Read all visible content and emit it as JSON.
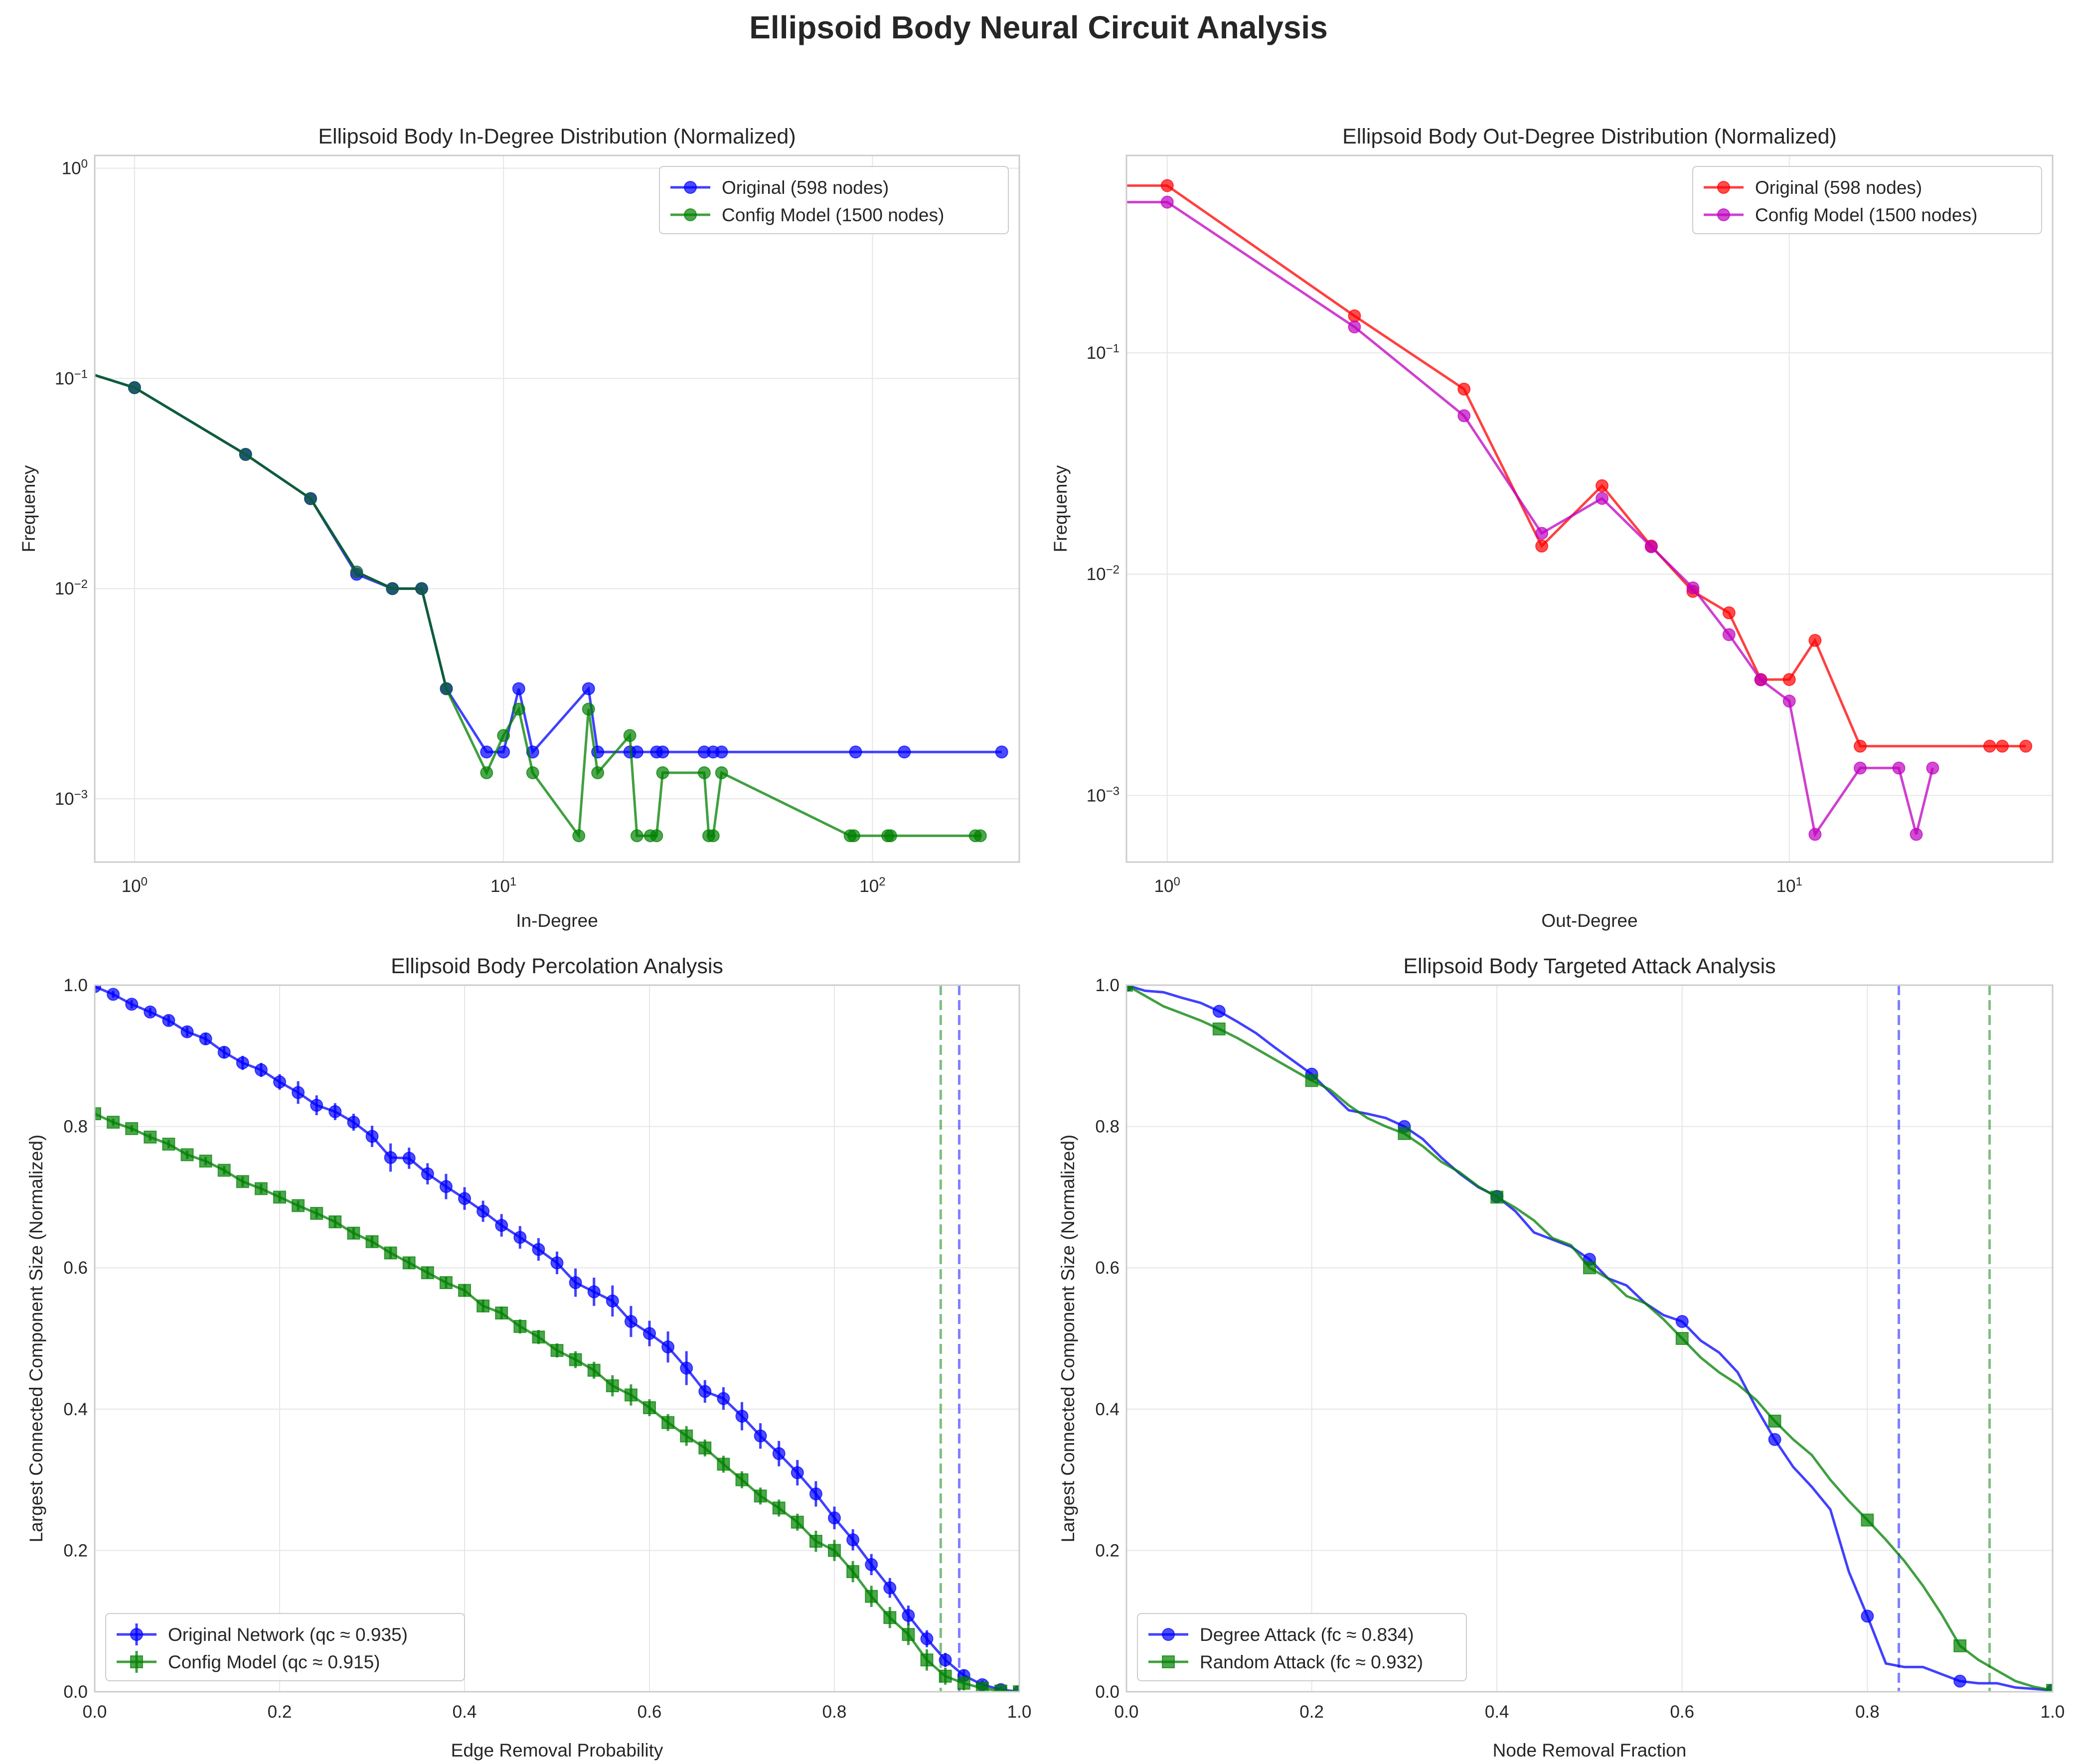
{
  "figure": {
    "title": "Ellipsoid Body Neural Circuit Analysis"
  },
  "colors": {
    "blue": "#0000ff",
    "green": "#008000",
    "red": "#ff0000",
    "magenta": "#bf00bf",
    "dark_green": "#0e5c3a",
    "grid": "#e6e6e6",
    "spine": "#cccccc"
  },
  "chart_data": [
    {
      "id": "in_degree",
      "type": "line",
      "title": "Ellipsoid Body In-Degree Distribution (Normalized)",
      "xlabel": "In-Degree",
      "ylabel": "Frequency",
      "xscale": "log",
      "yscale": "log",
      "xlim": [
        0.78,
        250
      ],
      "ylim": [
        0.0005,
        1.15
      ],
      "xticks": [
        1,
        10,
        100
      ],
      "xtick_labels": [
        [
          "10",
          "0"
        ],
        [
          "10",
          "1"
        ],
        [
          "10",
          "2"
        ]
      ],
      "yticks": [
        0.001,
        0.01,
        0.1,
        1
      ],
      "ytick_labels": [
        [
          "10",
          "−3"
        ],
        [
          "10",
          "−2"
        ],
        [
          "10",
          "−1"
        ],
        [
          "10",
          "0"
        ]
      ],
      "grid": true,
      "legend_position": "top-right",
      "series": [
        {
          "name": "Original (598 nodes)",
          "color": "#0000ff",
          "marker": "circle",
          "x": [
            0,
            1,
            2,
            3,
            4,
            5,
            6,
            7,
            9,
            10,
            11,
            12,
            17,
            18,
            22,
            23,
            26,
            27,
            35,
            37,
            39,
            90,
            122,
            224
          ],
          "y": [
            0.115,
            0.0904,
            0.0435,
            0.0268,
            0.0117,
            0.01,
            0.01,
            0.00334,
            0.00167,
            0.00167,
            0.00334,
            0.00167,
            0.00334,
            0.00167,
            0.00167,
            0.00167,
            0.00167,
            0.00167,
            0.00167,
            0.00167,
            0.00167,
            0.00167,
            0.00167,
            0.00167
          ]
        },
        {
          "name": "Config Model (1500 nodes)",
          "color": "#008000",
          "marker": "circle",
          "x": [
            0,
            1,
            2,
            3,
            4,
            5,
            6,
            7,
            9,
            10,
            11,
            12,
            16,
            17,
            18,
            22,
            23,
            25,
            26,
            27,
            35,
            36,
            37,
            39,
            87,
            89,
            110,
            112,
            190,
            196
          ],
          "y": [
            0.115,
            0.0904,
            0.0435,
            0.0268,
            0.012,
            0.01,
            0.01,
            0.00334,
            0.00133,
            0.002,
            0.00267,
            0.00133,
            0.000667,
            0.00267,
            0.00133,
            0.002,
            0.000667,
            0.000667,
            0.000667,
            0.00133,
            0.00133,
            0.000667,
            0.000667,
            0.00133,
            0.000667,
            0.000667,
            0.000667,
            0.000667,
            0.000667,
            0.000667
          ]
        }
      ]
    },
    {
      "id": "out_degree",
      "type": "line",
      "title": "Ellipsoid Body Out-Degree Distribution (Normalized)",
      "xlabel": "Out-Degree",
      "ylabel": "Frequency",
      "xscale": "log",
      "yscale": "log",
      "xlim": [
        0.86,
        26.5
      ],
      "ylim": [
        0.0005,
        0.78
      ],
      "xticks": [
        1,
        10
      ],
      "xtick_labels": [
        [
          "10",
          "0"
        ],
        [
          "10",
          "1"
        ]
      ],
      "yticks": [
        0.001,
        0.01,
        0.1
      ],
      "ytick_labels": [
        [
          "10",
          "−3"
        ],
        [
          "10",
          "−2"
        ],
        [
          "10",
          "−1"
        ]
      ],
      "grid": true,
      "legend_position": "top-right",
      "series": [
        {
          "name": "Original (598 nodes)",
          "color": "#ff0000",
          "marker": "circle",
          "x": [
            0,
            1,
            2,
            3,
            4,
            5,
            6,
            7,
            8,
            9,
            10,
            11,
            13,
            21,
            22,
            24
          ],
          "y": [
            0.57,
            0.57,
            0.147,
            0.0686,
            0.0134,
            0.0251,
            0.0134,
            0.00836,
            0.00669,
            0.00334,
            0.00334,
            0.00502,
            0.00167,
            0.00167,
            0.00167,
            0.00167
          ]
        },
        {
          "name": "Config Model (1500 nodes)",
          "color": "#bf00bf",
          "marker": "circle",
          "x": [
            0,
            1,
            2,
            3,
            4,
            5,
            6,
            7,
            8,
            9,
            10,
            11,
            13,
            15,
            16,
            17
          ],
          "y": [
            0.48,
            0.48,
            0.131,
            0.052,
            0.0153,
            0.022,
            0.0133,
            0.00867,
            0.00533,
            0.00333,
            0.00267,
            0.000667,
            0.00133,
            0.00133,
            0.000667,
            0.00133
          ]
        }
      ]
    },
    {
      "id": "percolation",
      "type": "line",
      "title": "Ellipsoid Body Percolation Analysis",
      "xlabel": "Edge Removal Probability",
      "ylabel": "Largest Connected Component Size (Normalized)",
      "xlim": [
        0,
        1
      ],
      "ylim": [
        0,
        1
      ],
      "xticks": [
        0,
        0.2,
        0.4,
        0.6,
        0.8,
        1.0
      ],
      "xtick_labels": [
        "0.0",
        "0.2",
        "0.4",
        "0.6",
        "0.8",
        "1.0"
      ],
      "yticks": [
        0,
        0.2,
        0.4,
        0.6,
        0.8,
        1.0
      ],
      "ytick_labels": [
        "0.0",
        "0.2",
        "0.4",
        "0.6",
        "0.8",
        "1.0"
      ],
      "grid": true,
      "legend_position": "lower-left",
      "vlines": [
        {
          "x": 0.935,
          "color": "#0000ff"
        },
        {
          "x": 0.915,
          "color": "#008000"
        }
      ],
      "series": [
        {
          "name": "Original Network (qc ≈ 0.935)",
          "color": "#0000ff",
          "marker": "circle",
          "x": [
            0,
            0.02,
            0.04,
            0.06,
            0.08,
            0.1,
            0.12,
            0.14,
            0.16,
            0.18,
            0.2,
            0.22,
            0.24,
            0.26,
            0.28,
            0.3,
            0.32,
            0.34,
            0.36,
            0.38,
            0.4,
            0.42,
            0.44,
            0.46,
            0.48,
            0.5,
            0.52,
            0.54,
            0.56,
            0.58,
            0.6,
            0.62,
            0.64,
            0.66,
            0.68,
            0.7,
            0.72,
            0.74,
            0.76,
            0.78,
            0.8,
            0.82,
            0.84,
            0.86,
            0.88,
            0.9,
            0.92,
            0.94,
            0.96,
            0.98,
            1.0
          ],
          "y": [
            0.998,
            0.987,
            0.973,
            0.962,
            0.95,
            0.934,
            0.924,
            0.905,
            0.89,
            0.88,
            0.863,
            0.848,
            0.83,
            0.821,
            0.806,
            0.786,
            0.756,
            0.755,
            0.733,
            0.715,
            0.698,
            0.68,
            0.66,
            0.643,
            0.626,
            0.607,
            0.579,
            0.566,
            0.553,
            0.524,
            0.507,
            0.488,
            0.458,
            0.425,
            0.415,
            0.39,
            0.362,
            0.337,
            0.31,
            0.28,
            0.246,
            0.215,
            0.18,
            0.147,
            0.108,
            0.075,
            0.045,
            0.023,
            0.01,
            0.003,
            0.0
          ],
          "err": [
            0.003,
            0.005,
            0.006,
            0.006,
            0.007,
            0.007,
            0.008,
            0.008,
            0.01,
            0.01,
            0.011,
            0.016,
            0.014,
            0.012,
            0.012,
            0.015,
            0.02,
            0.015,
            0.015,
            0.018,
            0.016,
            0.015,
            0.016,
            0.016,
            0.016,
            0.016,
            0.02,
            0.02,
            0.022,
            0.022,
            0.018,
            0.022,
            0.024,
            0.016,
            0.016,
            0.02,
            0.018,
            0.018,
            0.018,
            0.018,
            0.016,
            0.015,
            0.015,
            0.014,
            0.014,
            0.012,
            0.01,
            0.008,
            0.006,
            0.004,
            0.002
          ]
        },
        {
          "name": "Config Model (qc ≈ 0.915)",
          "color": "#008000",
          "marker": "square",
          "x": [
            0,
            0.02,
            0.04,
            0.06,
            0.08,
            0.1,
            0.12,
            0.14,
            0.16,
            0.18,
            0.2,
            0.22,
            0.24,
            0.26,
            0.28,
            0.3,
            0.32,
            0.34,
            0.36,
            0.38,
            0.4,
            0.42,
            0.44,
            0.46,
            0.48,
            0.5,
            0.52,
            0.54,
            0.56,
            0.58,
            0.6,
            0.62,
            0.64,
            0.66,
            0.68,
            0.7,
            0.72,
            0.74,
            0.76,
            0.78,
            0.8,
            0.82,
            0.84,
            0.86,
            0.88,
            0.9,
            0.92,
            0.94,
            0.96,
            0.98,
            1.0
          ],
          "y": [
            0.818,
            0.806,
            0.797,
            0.785,
            0.775,
            0.76,
            0.751,
            0.738,
            0.722,
            0.712,
            0.7,
            0.688,
            0.677,
            0.665,
            0.649,
            0.637,
            0.621,
            0.607,
            0.593,
            0.579,
            0.568,
            0.546,
            0.536,
            0.517,
            0.502,
            0.483,
            0.47,
            0.455,
            0.433,
            0.42,
            0.402,
            0.381,
            0.362,
            0.345,
            0.322,
            0.3,
            0.277,
            0.26,
            0.24,
            0.213,
            0.2,
            0.17,
            0.135,
            0.105,
            0.081,
            0.045,
            0.022,
            0.012,
            0.005,
            0.001,
            0.0
          ],
          "err": [
            0.005,
            0.005,
            0.005,
            0.005,
            0.006,
            0.006,
            0.006,
            0.006,
            0.007,
            0.007,
            0.007,
            0.007,
            0.007,
            0.008,
            0.008,
            0.008,
            0.008,
            0.008,
            0.008,
            0.008,
            0.009,
            0.009,
            0.009,
            0.01,
            0.01,
            0.01,
            0.012,
            0.012,
            0.015,
            0.015,
            0.012,
            0.012,
            0.014,
            0.012,
            0.012,
            0.012,
            0.012,
            0.012,
            0.012,
            0.015,
            0.015,
            0.015,
            0.015,
            0.015,
            0.015,
            0.015,
            0.012,
            0.01,
            0.008,
            0.005,
            0.002
          ]
        }
      ]
    },
    {
      "id": "attack",
      "type": "line",
      "title": "Ellipsoid Body Targeted Attack Analysis",
      "xlabel": "Node Removal Fraction",
      "ylabel": "Largest Connected Component Size (Normalized)",
      "xlim": [
        0,
        1
      ],
      "ylim": [
        0,
        1
      ],
      "xticks": [
        0,
        0.2,
        0.4,
        0.6,
        0.8,
        1.0
      ],
      "xtick_labels": [
        "0.0",
        "0.2",
        "0.4",
        "0.6",
        "0.8",
        "1.0"
      ],
      "yticks": [
        0,
        0.2,
        0.4,
        0.6,
        0.8,
        1.0
      ],
      "ytick_labels": [
        "0.0",
        "0.2",
        "0.4",
        "0.6",
        "0.8",
        "1.0"
      ],
      "grid": true,
      "legend_position": "lower-left",
      "vlines": [
        {
          "x": 0.834,
          "color": "#0000ff"
        },
        {
          "x": 0.932,
          "color": "#008000"
        }
      ],
      "series": [
        {
          "name": "Degree Attack (fc ≈ 0.834)",
          "color": "#0000ff",
          "marker": "circle",
          "x": [
            0,
            0.02,
            0.04,
            0.06,
            0.08,
            0.1,
            0.12,
            0.14,
            0.16,
            0.18,
            0.2,
            0.22,
            0.24,
            0.26,
            0.28,
            0.3,
            0.32,
            0.34,
            0.36,
            0.38,
            0.4,
            0.42,
            0.44,
            0.46,
            0.48,
            0.5,
            0.52,
            0.54,
            0.56,
            0.58,
            0.6,
            0.62,
            0.64,
            0.66,
            0.68,
            0.7,
            0.72,
            0.74,
            0.76,
            0.78,
            0.8,
            0.82,
            0.84,
            0.86,
            0.88,
            0.9,
            0.92,
            0.94,
            0.96,
            0.98,
            1.0
          ],
          "y": [
            1.0,
            0.992,
            0.99,
            0.982,
            0.975,
            0.963,
            0.948,
            0.932,
            0.912,
            0.893,
            0.874,
            0.848,
            0.823,
            0.818,
            0.812,
            0.8,
            0.782,
            0.756,
            0.733,
            0.714,
            0.701,
            0.68,
            0.65,
            0.64,
            0.63,
            0.612,
            0.585,
            0.575,
            0.55,
            0.533,
            0.524,
            0.497,
            0.48,
            0.452,
            0.402,
            0.357,
            0.318,
            0.29,
            0.258,
            0.17,
            0.107,
            0.04,
            0.035,
            0.035,
            0.025,
            0.015,
            0.012,
            0.012,
            0.006,
            0.004,
            0.002
          ]
        },
        {
          "name": "Random Attack (fc ≈ 0.932)",
          "color": "#008000",
          "marker": "square",
          "x": [
            0,
            0.02,
            0.04,
            0.06,
            0.08,
            0.1,
            0.12,
            0.14,
            0.16,
            0.18,
            0.2,
            0.22,
            0.24,
            0.26,
            0.28,
            0.3,
            0.32,
            0.34,
            0.36,
            0.38,
            0.4,
            0.42,
            0.44,
            0.46,
            0.48,
            0.5,
            0.52,
            0.54,
            0.56,
            0.58,
            0.6,
            0.62,
            0.64,
            0.66,
            0.68,
            0.7,
            0.72,
            0.74,
            0.76,
            0.78,
            0.8,
            0.82,
            0.84,
            0.86,
            0.88,
            0.9,
            0.92,
            0.94,
            0.96,
            0.98,
            1.0
          ],
          "y": [
            1.0,
            0.985,
            0.97,
            0.96,
            0.95,
            0.938,
            0.925,
            0.91,
            0.895,
            0.88,
            0.865,
            0.852,
            0.83,
            0.812,
            0.8,
            0.79,
            0.772,
            0.75,
            0.735,
            0.715,
            0.7,
            0.685,
            0.667,
            0.642,
            0.632,
            0.6,
            0.585,
            0.56,
            0.55,
            0.527,
            0.5,
            0.473,
            0.452,
            0.435,
            0.413,
            0.383,
            0.357,
            0.335,
            0.3,
            0.27,
            0.243,
            0.215,
            0.185,
            0.15,
            0.11,
            0.065,
            0.045,
            0.03,
            0.015,
            0.007,
            0.002
          ]
        }
      ]
    }
  ]
}
